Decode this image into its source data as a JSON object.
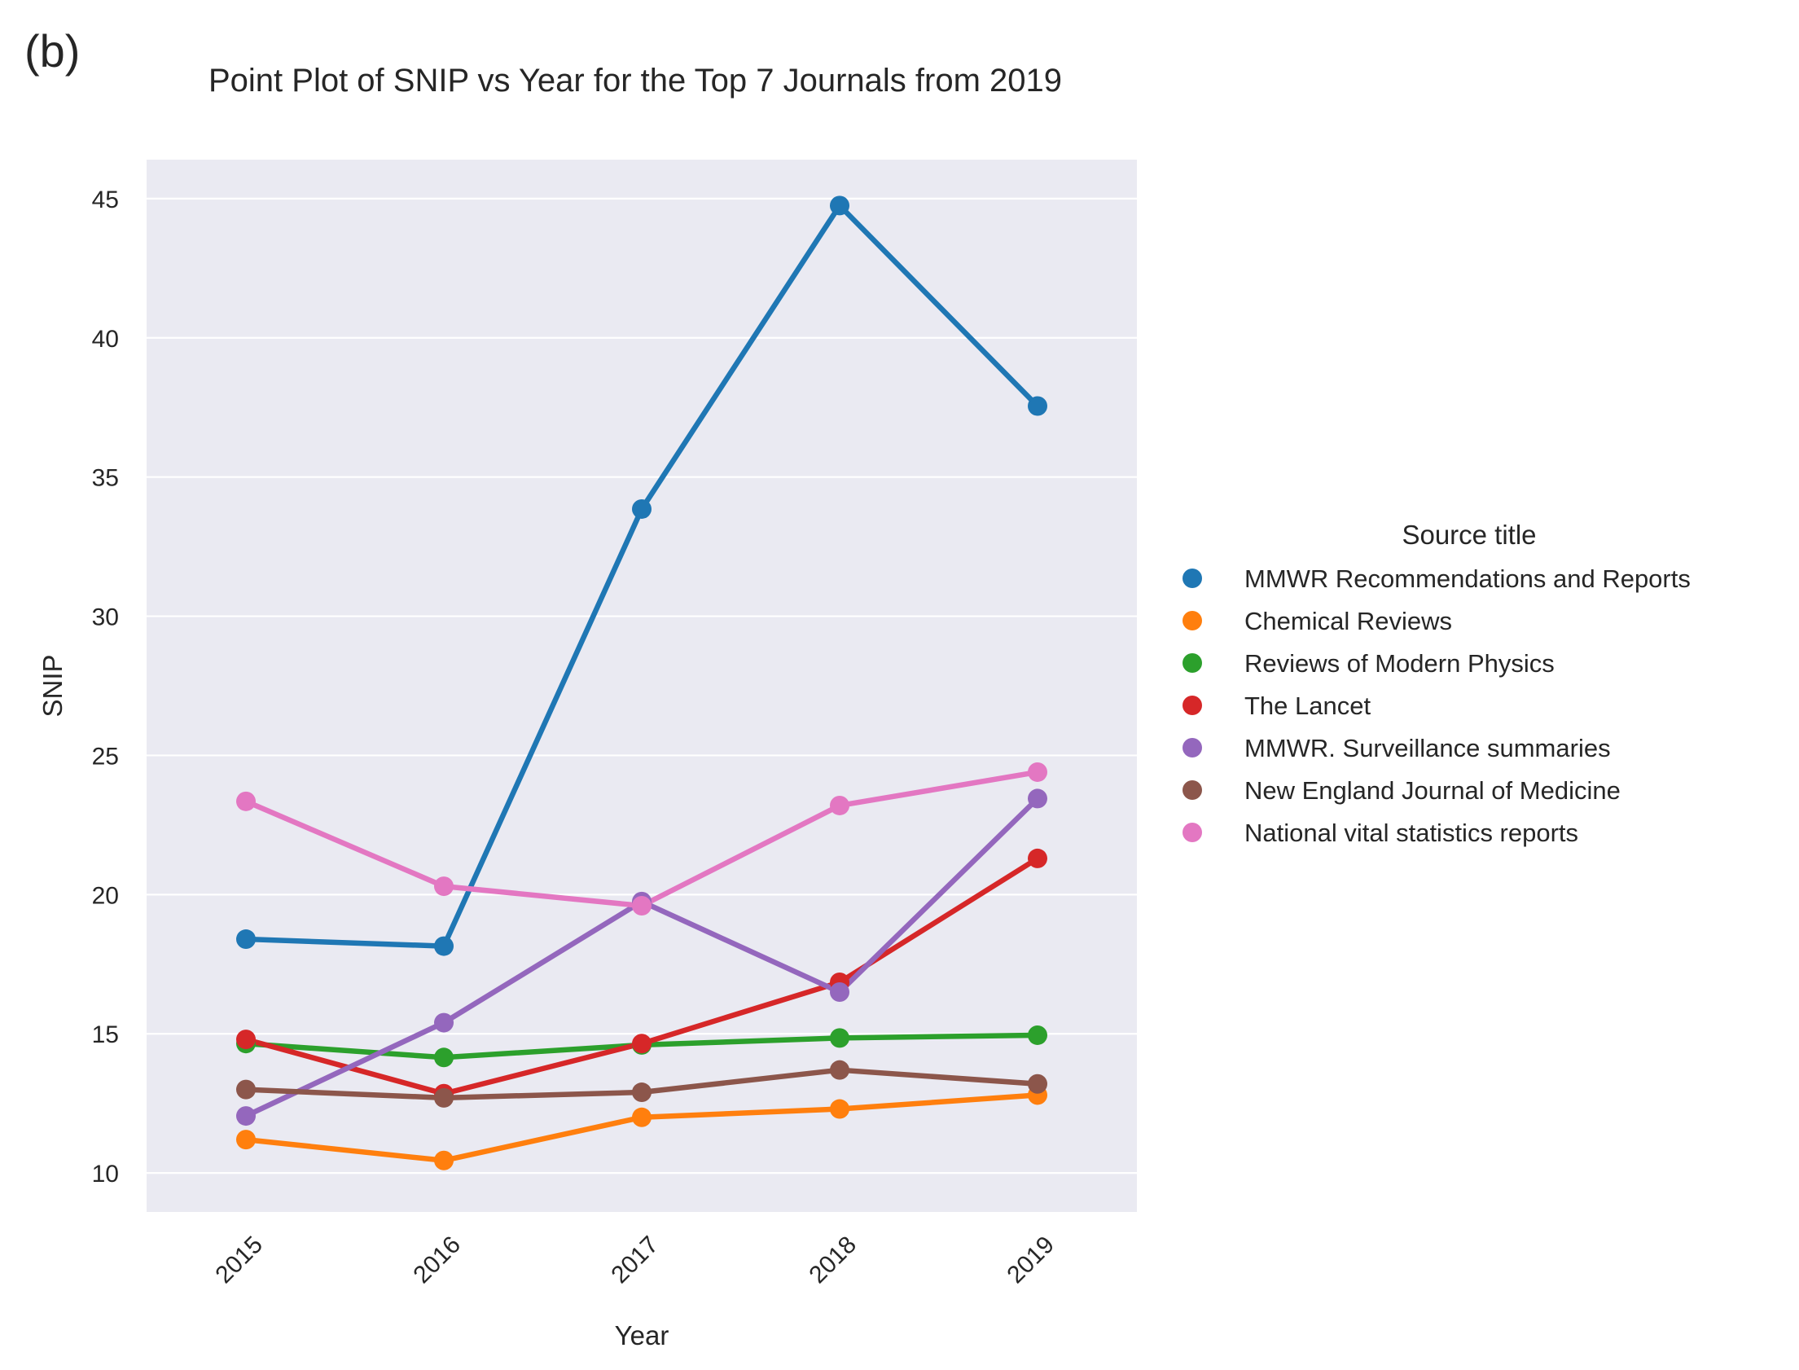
{
  "panel_label": "(b)",
  "chart_data": {
    "type": "line",
    "title": "Point Plot of SNIP vs Year for the Top 7 Journals from 2019",
    "xlabel": "Year",
    "ylabel": "SNIP",
    "categories": [
      "2015",
      "2016",
      "2017",
      "2018",
      "2019"
    ],
    "ylim": [
      8.6,
      46.4
    ],
    "yticks": [
      10,
      15,
      20,
      25,
      30,
      35,
      40,
      45
    ],
    "grid": true,
    "background": "#eaeaf2",
    "legend": {
      "title": "Source title",
      "placement": "right"
    },
    "series": [
      {
        "name": "MMWR Recommendations and Reports",
        "color": "#1f77b4",
        "values": [
          18.4,
          18.15,
          33.85,
          44.75,
          37.55
        ]
      },
      {
        "name": "Chemical Reviews",
        "color": "#ff7f0e",
        "values": [
          11.2,
          10.45,
          12.0,
          12.3,
          12.8
        ]
      },
      {
        "name": "Reviews of Modern Physics",
        "color": "#2ca02c",
        "values": [
          14.65,
          14.15,
          14.6,
          14.85,
          14.95
        ]
      },
      {
        "name": "The Lancet",
        "color": "#d62728",
        "values": [
          14.8,
          12.85,
          14.65,
          16.85,
          21.3
        ]
      },
      {
        "name": "MMWR. Surveillance summaries",
        "color": "#9467bd",
        "values": [
          12.05,
          15.4,
          19.75,
          16.5,
          23.45
        ]
      },
      {
        "name": "New England Journal of Medicine",
        "color": "#8c564b",
        "values": [
          13.0,
          12.7,
          12.9,
          13.7,
          13.2
        ]
      },
      {
        "name": "National vital statistics reports",
        "color": "#e377c2",
        "values": [
          23.35,
          20.3,
          19.6,
          23.2,
          24.4
        ]
      }
    ]
  }
}
